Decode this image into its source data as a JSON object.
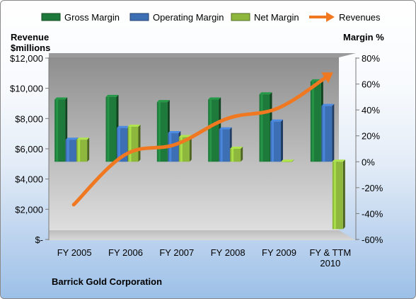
{
  "chart_data": {
    "type": "bar",
    "title": "Barrick Gold Corporation",
    "categories": [
      "FY 2005",
      "FY 2006",
      "FY 2007",
      "FY 2008",
      "FY 2009",
      "FY & TTM 2010"
    ],
    "series": [
      {
        "name": "Gross Margin",
        "kind": "bar",
        "axis": "right",
        "color": "#1e7a3a",
        "values": [
          48,
          50,
          46,
          48,
          52,
          62
        ]
      },
      {
        "name": "Operating Margin",
        "kind": "bar",
        "axis": "right",
        "color": "#3d6fb5",
        "values": [
          17,
          26,
          22,
          25,
          31,
          43
        ]
      },
      {
        "name": "Net Margin",
        "kind": "bar",
        "axis": "right",
        "color": "#8db83d",
        "values": [
          17,
          27,
          19,
          10,
          0,
          -52
        ]
      },
      {
        "name": "Revenues",
        "kind": "line",
        "axis": "left",
        "color": "#f07820",
        "values": [
          2300,
          5600,
          6300,
          8000,
          8700,
          10900
        ]
      }
    ],
    "left_axis": {
      "label_line1": "Revenue",
      "label_line2": "$millions",
      "min": 0,
      "max": 12000,
      "ticks": [
        "$-",
        "$2,000",
        "$4,000",
        "$6,000",
        "$8,000",
        "$10,000",
        "$12,000"
      ]
    },
    "right_axis": {
      "label": "Margin %",
      "min": -60,
      "max": 80,
      "ticks": [
        "-60%",
        "-40%",
        "-20%",
        "0%",
        "20%",
        "40%",
        "60%",
        "80%"
      ]
    },
    "legend_position": "top"
  }
}
